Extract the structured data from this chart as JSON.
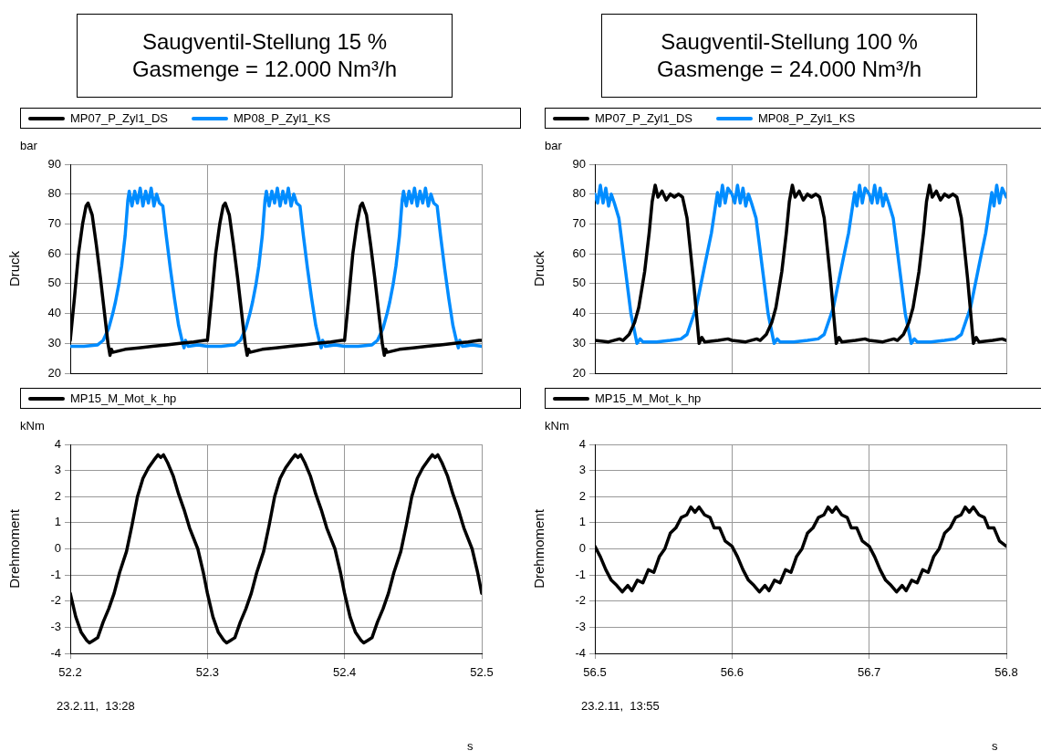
{
  "chart_data": [
    {
      "type": "line",
      "title": "Saugventil-Stellung 15 %",
      "subtitle": "Gasmenge = 12.000 Nm³/h",
      "ylabel": "Druck",
      "annotations": [
        "bar"
      ],
      "legend": "top",
      "grid": true,
      "marker": "none",
      "tick_labels": "y",
      "xlim": [
        52.2,
        52.5
      ],
      "xticks": [
        52.2,
        52.3,
        52.4,
        52.5
      ],
      "ylim": [
        20,
        90
      ],
      "yticks": [
        20,
        30,
        40,
        50,
        60,
        70,
        80,
        90
      ],
      "series": [
        {
          "name": "MP07_P_Zyl1_DS",
          "color": "#000000",
          "x": [
            52.2,
            52.203,
            52.206,
            52.209,
            52.2115,
            52.213,
            52.2145,
            52.216,
            52.219,
            52.222,
            52.225,
            52.2275,
            52.229,
            52.23,
            52.231,
            52.24,
            52.25,
            52.26,
            52.27,
            52.28,
            52.29,
            52.298,
            52.3,
            52.303,
            52.306,
            52.309,
            52.3115,
            52.313,
            52.3145,
            52.316,
            52.319,
            52.322,
            52.325,
            52.3275,
            52.329,
            52.33,
            52.331,
            52.34,
            52.35,
            52.36,
            52.37,
            52.38,
            52.39,
            52.398,
            52.4,
            52.403,
            52.406,
            52.409,
            52.4115,
            52.413,
            52.4145,
            52.416,
            52.419,
            52.422,
            52.425,
            52.4275,
            52.429,
            52.43,
            52.431,
            52.44,
            52.45,
            52.46,
            52.47,
            52.48,
            52.49,
            52.498,
            52.5
          ],
          "values": [
            31,
            45,
            60,
            70,
            76,
            77,
            75,
            73,
            63,
            52,
            40,
            30,
            26,
            28,
            27,
            28,
            28.5,
            29,
            29.5,
            30,
            30.5,
            31,
            31,
            45,
            60,
            70,
            76,
            77,
            75,
            73,
            63,
            52,
            40,
            30,
            26,
            28,
            27,
            28,
            28.5,
            29,
            29.5,
            30,
            30.5,
            31,
            31,
            45,
            60,
            70,
            76,
            77,
            75,
            73,
            63,
            52,
            40,
            30,
            26,
            28,
            27,
            28,
            28.5,
            29,
            29.5,
            30,
            30.5,
            31,
            31
          ]
        },
        {
          "name": "MP08_P_Zyl1_KS",
          "color": "#008cff",
          "x": [
            52.2,
            52.21,
            52.22,
            52.224,
            52.228,
            52.231,
            52.233,
            52.2355,
            52.2375,
            52.24,
            52.242,
            52.243,
            52.245,
            52.247,
            52.249,
            52.251,
            52.253,
            52.255,
            52.257,
            52.259,
            52.261,
            52.263,
            52.265,
            52.2675,
            52.27,
            52.273,
            52.276,
            52.279,
            52.282,
            52.283,
            52.284,
            52.286,
            52.293,
            52.3,
            52.31,
            52.32,
            52.324,
            52.328,
            52.331,
            52.333,
            52.3355,
            52.3375,
            52.34,
            52.342,
            52.343,
            52.345,
            52.347,
            52.349,
            52.351,
            52.353,
            52.355,
            52.357,
            52.359,
            52.361,
            52.363,
            52.365,
            52.3675,
            52.37,
            52.373,
            52.376,
            52.379,
            52.382,
            52.383,
            52.384,
            52.386,
            52.393,
            52.4,
            52.41,
            52.42,
            52.424,
            52.428,
            52.431,
            52.433,
            52.4355,
            52.4375,
            52.44,
            52.442,
            52.443,
            52.445,
            52.447,
            52.449,
            52.451,
            52.453,
            52.455,
            52.457,
            52.459,
            52.461,
            52.463,
            52.465,
            52.4675,
            52.47,
            52.473,
            52.476,
            52.479,
            52.482,
            52.483,
            52.484,
            52.486,
            52.493,
            52.5
          ],
          "values": [
            29,
            29,
            29.5,
            31,
            35,
            40,
            44,
            50,
            56,
            66,
            78,
            81,
            76,
            81,
            77,
            82,
            76,
            81,
            77,
            82,
            76,
            80,
            77,
            76,
            66,
            55,
            45,
            36,
            30,
            28.5,
            31,
            29,
            29.5,
            29,
            29,
            29.5,
            31,
            35,
            40,
            44,
            50,
            56,
            66,
            78,
            81,
            76,
            81,
            77,
            82,
            76,
            81,
            77,
            82,
            76,
            80,
            77,
            76,
            66,
            55,
            45,
            36,
            30,
            28.5,
            31,
            29,
            29.5,
            29,
            29,
            29.5,
            31,
            35,
            40,
            44,
            50,
            56,
            66,
            78,
            81,
            76,
            81,
            77,
            82,
            76,
            81,
            77,
            82,
            76,
            80,
            77,
            76,
            66,
            55,
            45,
            36,
            30,
            28.5,
            31,
            29,
            29.5,
            29
          ]
        }
      ]
    },
    {
      "type": "line",
      "xlabel": "s",
      "ylabel": "Drehmoment",
      "annotations": [
        "kNm",
        "23.2.11,  13:28"
      ],
      "legend": "top",
      "grid": true,
      "marker": "none",
      "xlim": [
        52.2,
        52.5
      ],
      "xticks": [
        52.2,
        52.3,
        52.4,
        52.5
      ],
      "ylim": [
        -4,
        4
      ],
      "yticks": [
        -4,
        -3,
        -2,
        -1,
        0,
        1,
        2,
        3,
        4
      ],
      "series": [
        {
          "name": "MP15_M_Mot_k_hp",
          "color": "#000000",
          "x": [
            52.2,
            52.204,
            52.208,
            52.212,
            52.214,
            52.217,
            52.22,
            52.224,
            52.228,
            52.232,
            52.236,
            52.241,
            52.245,
            52.249,
            52.253,
            52.257,
            52.261,
            52.264,
            52.266,
            52.268,
            52.271,
            52.275,
            52.279,
            52.283,
            52.287,
            52.293,
            52.297,
            52.3,
            52.304,
            52.308,
            52.312,
            52.314,
            52.317,
            52.32,
            52.324,
            52.328,
            52.332,
            52.336,
            52.341,
            52.345,
            52.349,
            52.353,
            52.357,
            52.361,
            52.364,
            52.366,
            52.368,
            52.371,
            52.375,
            52.379,
            52.383,
            52.387,
            52.393,
            52.397,
            52.4,
            52.404,
            52.408,
            52.412,
            52.414,
            52.417,
            52.42,
            52.424,
            52.428,
            52.432,
            52.436,
            52.441,
            52.445,
            52.449,
            52.453,
            52.457,
            52.461,
            52.464,
            52.466,
            52.468,
            52.471,
            52.475,
            52.479,
            52.483,
            52.487,
            52.493,
            52.497,
            52.5
          ],
          "values": [
            -1.7,
            -2.6,
            -3.2,
            -3.5,
            -3.6,
            -3.5,
            -3.4,
            -2.8,
            -2.3,
            -1.7,
            -0.9,
            -0.1,
            0.9,
            2,
            2.7,
            3.1,
            3.4,
            3.6,
            3.5,
            3.6,
            3.3,
            2.8,
            2.1,
            1.5,
            0.8,
            0,
            -0.9,
            -1.7,
            -2.6,
            -3.2,
            -3.5,
            -3.6,
            -3.5,
            -3.4,
            -2.8,
            -2.3,
            -1.7,
            -0.9,
            -0.1,
            0.9,
            2,
            2.7,
            3.1,
            3.4,
            3.6,
            3.5,
            3.6,
            3.3,
            2.8,
            2.1,
            1.5,
            0.8,
            0,
            -0.9,
            -1.7,
            -2.6,
            -3.2,
            -3.5,
            -3.6,
            -3.5,
            -3.4,
            -2.8,
            -2.3,
            -1.7,
            -0.9,
            -0.1,
            0.9,
            2,
            2.7,
            3.1,
            3.4,
            3.6,
            3.5,
            3.6,
            3.3,
            2.8,
            2.1,
            1.5,
            0.8,
            0,
            -0.9,
            -1.7
          ]
        }
      ]
    },
    {
      "type": "line",
      "title": "Saugventil-Stellung 100 %",
      "subtitle": "Gasmenge = 24.000 Nm³/h",
      "ylabel": "Druck",
      "annotations": [
        "bar"
      ],
      "legend": "top",
      "grid": true,
      "marker": "none",
      "tick_labels": "y",
      "xlim": [
        56.5,
        56.8
      ],
      "xticks": [
        56.5,
        56.6,
        56.7,
        56.8
      ],
      "ylim": [
        20,
        90
      ],
      "yticks": [
        20,
        30,
        40,
        50,
        60,
        70,
        80,
        90
      ],
      "series": [
        {
          "name": "MP07_P_Zyl1_DS",
          "color": "#000000",
          "x": [
            56.5,
            56.51,
            56.518,
            56.5206,
            56.525,
            56.529,
            56.532,
            56.5363,
            56.5396,
            56.5418,
            56.544,
            56.546,
            56.549,
            56.552,
            56.555,
            56.558,
            56.561,
            56.5639,
            56.5672,
            56.5717,
            56.576,
            56.578,
            56.58,
            56.59,
            56.597,
            56.6,
            56.61,
            56.618,
            56.6206,
            56.625,
            56.629,
            56.632,
            56.6363,
            56.6396,
            56.6418,
            56.644,
            56.646,
            56.649,
            56.652,
            56.655,
            56.658,
            56.661,
            56.6639,
            56.6672,
            56.6717,
            56.676,
            56.678,
            56.68,
            56.69,
            56.697,
            56.7,
            56.71,
            56.718,
            56.7206,
            56.725,
            56.729,
            56.732,
            56.7363,
            56.7396,
            56.7418,
            56.744,
            56.746,
            56.749,
            56.752,
            56.755,
            56.758,
            56.761,
            56.7639,
            56.7672,
            56.7717,
            56.776,
            56.778,
            56.78,
            56.79,
            56.797,
            56.8
          ],
          "values": [
            31,
            30.5,
            31.5,
            31,
            33,
            37,
            42,
            54,
            67,
            77.5,
            83,
            79,
            81,
            78,
            80,
            79,
            80,
            79,
            72,
            52,
            30,
            32,
            30.5,
            31,
            31.5,
            31,
            30.5,
            31.5,
            31,
            33,
            37,
            42,
            54,
            67,
            77.5,
            83,
            79,
            81,
            78,
            80,
            79,
            80,
            79,
            72,
            52,
            30,
            32,
            30.5,
            31,
            31.5,
            31,
            30.5,
            31.5,
            31,
            33,
            37,
            42,
            54,
            67,
            77.5,
            83,
            79,
            81,
            78,
            80,
            79,
            80,
            79,
            72,
            52,
            30,
            32,
            30.5,
            31,
            31.5,
            31
          ]
        },
        {
          "name": "MP08_P_Zyl1_KS",
          "color": "#008cff",
          "x": [
            56.5,
            56.502,
            56.504,
            56.506,
            56.508,
            56.51,
            56.512,
            56.5142,
            56.5175,
            56.5197,
            56.523,
            56.5263,
            56.5307,
            56.533,
            56.535,
            56.545,
            56.555,
            56.5628,
            56.5672,
            56.5739,
            56.5805,
            56.585,
            56.5894,
            56.591,
            56.593,
            56.595,
            56.597,
            56.6,
            56.602,
            56.604,
            56.606,
            56.608,
            56.61,
            56.612,
            56.6142,
            56.6175,
            56.6197,
            56.623,
            56.6263,
            56.6307,
            56.633,
            56.635,
            56.645,
            56.655,
            56.6628,
            56.6672,
            56.6739,
            56.6805,
            56.685,
            56.6894,
            56.691,
            56.693,
            56.695,
            56.697,
            56.7,
            56.702,
            56.704,
            56.706,
            56.708,
            56.71,
            56.712,
            56.7142,
            56.7175,
            56.7197,
            56.723,
            56.7263,
            56.7307,
            56.733,
            56.735,
            56.745,
            56.755,
            56.7628,
            56.7672,
            56.7739,
            56.7805,
            56.785,
            56.7894,
            56.791,
            56.793,
            56.795,
            56.797,
            56.8
          ],
          "values": [
            80,
            77,
            83,
            77,
            82,
            76,
            80,
            77,
            72,
            64,
            52,
            40,
            30,
            31.5,
            30.5,
            30.5,
            31,
            31.5,
            33,
            42,
            57,
            67,
            80.5,
            76,
            83,
            77,
            82,
            80,
            77,
            83,
            77,
            82,
            76,
            80,
            77,
            72,
            64,
            52,
            40,
            30,
            31.5,
            30.5,
            30.5,
            31,
            31.5,
            33,
            42,
            57,
            67,
            80.5,
            76,
            83,
            77,
            82,
            80,
            77,
            83,
            77,
            82,
            76,
            80,
            77,
            72,
            64,
            52,
            40,
            30,
            31.5,
            30.5,
            30.5,
            31,
            31.5,
            33,
            42,
            57,
            67,
            80.5,
            76,
            83,
            77,
            82,
            79
          ]
        }
      ]
    },
    {
      "type": "line",
      "xlabel": "s",
      "ylabel": "Drehmoment",
      "annotations": [
        "kNm",
        "23.2.11,  13:55"
      ],
      "legend": "top",
      "grid": true,
      "marker": "none",
      "xlim": [
        56.5,
        56.8
      ],
      "xticks": [
        56.5,
        56.6,
        56.7,
        56.8
      ],
      "ylim": [
        -4,
        4
      ],
      "yticks": [
        -4,
        -3,
        -2,
        -1,
        0,
        1,
        2,
        3,
        4
      ],
      "series": [
        {
          "name": "MP15_M_Mot_k_hp",
          "color": "#000000",
          "x": [
            56.5,
            56.504,
            56.508,
            56.512,
            56.516,
            56.52,
            56.524,
            56.527,
            56.531,
            56.535,
            56.539,
            56.543,
            56.547,
            56.551,
            56.555,
            56.559,
            56.563,
            56.567,
            56.57,
            56.573,
            56.576,
            56.58,
            56.584,
            56.587,
            56.591,
            56.595,
            56.6,
            56.604,
            56.608,
            56.612,
            56.616,
            56.62,
            56.624,
            56.627,
            56.631,
            56.635,
            56.639,
            56.643,
            56.647,
            56.651,
            56.655,
            56.659,
            56.663,
            56.667,
            56.67,
            56.673,
            56.676,
            56.68,
            56.684,
            56.687,
            56.691,
            56.695,
            56.7,
            56.704,
            56.708,
            56.712,
            56.716,
            56.72,
            56.724,
            56.727,
            56.731,
            56.735,
            56.739,
            56.743,
            56.747,
            56.751,
            56.755,
            56.759,
            56.763,
            56.767,
            56.77,
            56.773,
            56.776,
            56.78,
            56.784,
            56.787,
            56.791,
            56.795,
            56.8
          ],
          "values": [
            0.1,
            -0.3,
            -0.8,
            -1.2,
            -1.4,
            -1.65,
            -1.4,
            -1.6,
            -1.2,
            -1.3,
            -0.8,
            -0.9,
            -0.3,
            0,
            0.6,
            0.8,
            1.2,
            1.3,
            1.6,
            1.4,
            1.6,
            1.3,
            1.2,
            0.8,
            0.8,
            0.3,
            0.1,
            -0.3,
            -0.8,
            -1.2,
            -1.4,
            -1.65,
            -1.4,
            -1.6,
            -1.2,
            -1.3,
            -0.8,
            -0.9,
            -0.3,
            0,
            0.6,
            0.8,
            1.2,
            1.3,
            1.6,
            1.4,
            1.6,
            1.3,
            1.2,
            0.8,
            0.8,
            0.3,
            0.1,
            -0.3,
            -0.8,
            -1.2,
            -1.4,
            -1.65,
            -1.4,
            -1.6,
            -1.2,
            -1.3,
            -0.8,
            -0.9,
            -0.3,
            0,
            0.6,
            0.8,
            1.2,
            1.3,
            1.6,
            1.4,
            1.6,
            1.3,
            1.2,
            0.8,
            0.8,
            0.3,
            0.1
          ]
        }
      ]
    }
  ]
}
